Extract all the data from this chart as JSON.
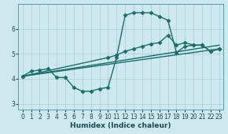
{
  "xlabel": "Humidex (Indice chaleur)",
  "bg_color": "#cde8ef",
  "grid_color": "#aacccc",
  "line_color": "#1a6e6a",
  "xlim": [
    -0.5,
    23.5
  ],
  "ylim": [
    2.75,
    7.0
  ],
  "xticks": [
    0,
    1,
    2,
    3,
    4,
    5,
    6,
    7,
    8,
    9,
    10,
    11,
    12,
    13,
    14,
    15,
    16,
    17,
    18,
    19,
    20,
    21,
    22,
    23
  ],
  "yticks": [
    3,
    4,
    5,
    6
  ],
  "lines": [
    {
      "x": [
        0,
        1,
        2,
        3,
        4,
        5,
        6,
        7,
        8,
        9,
        10,
        11,
        12,
        13,
        14,
        15,
        16,
        17,
        18,
        19,
        20,
        21,
        22,
        23
      ],
      "y": [
        4.1,
        4.3,
        4.35,
        4.4,
        4.05,
        4.05,
        3.65,
        3.5,
        3.5,
        3.6,
        3.65,
        4.85,
        6.55,
        6.65,
        6.65,
        6.65,
        6.5,
        6.35,
        5.05,
        5.3,
        5.35,
        5.35,
        5.1,
        5.2
      ]
    },
    {
      "x": [
        0,
        10,
        11,
        12,
        13,
        14,
        15,
        16,
        17,
        18,
        19,
        20,
        21,
        22,
        23
      ],
      "y": [
        4.1,
        4.85,
        4.95,
        5.1,
        5.2,
        5.3,
        5.4,
        5.45,
        5.75,
        5.35,
        5.45,
        5.35,
        5.35,
        5.1,
        5.2
      ]
    },
    {
      "x": [
        0,
        23
      ],
      "y": [
        4.1,
        5.2
      ]
    },
    {
      "x": [
        0,
        23
      ],
      "y": [
        4.1,
        5.35
      ]
    }
  ],
  "marker": "D",
  "markersize": 2.5,
  "linewidth": 1.0
}
